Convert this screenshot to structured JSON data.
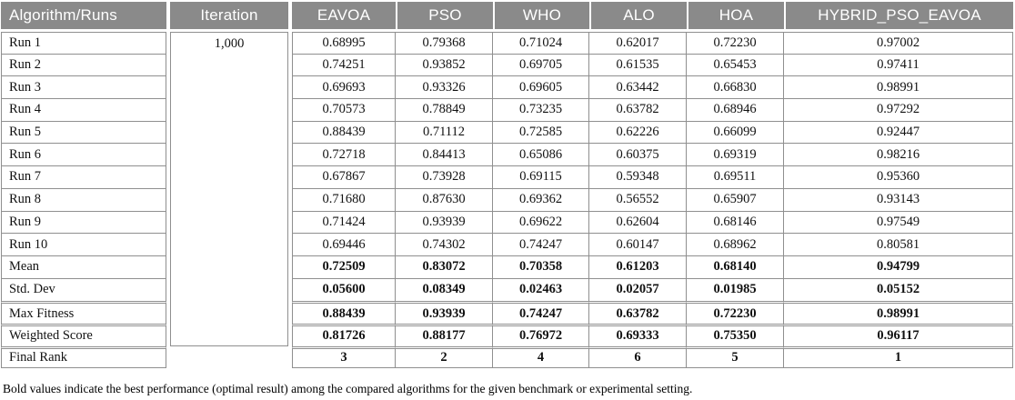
{
  "table": {
    "columns": [
      {
        "id": "algorithm-runs",
        "label": "Algorithm/Runs"
      },
      {
        "id": "iteration",
        "label": "Iteration"
      },
      {
        "id": "eavoa",
        "label": "EAVOA"
      },
      {
        "id": "pso",
        "label": "PSO"
      },
      {
        "id": "who",
        "label": "WHO"
      },
      {
        "id": "alo",
        "label": "ALO"
      },
      {
        "id": "hoa",
        "label": "HOA"
      },
      {
        "id": "hybrid-pso-eavoa",
        "label": "HYBRID_PSO_EAVOA"
      }
    ],
    "iteration_value": "1,000",
    "rows": [
      {
        "label": "Run 1",
        "values": [
          "0.68995",
          "0.79368",
          "0.71024",
          "0.62017",
          "0.72230",
          "0.97002"
        ],
        "bold": false,
        "sep": false
      },
      {
        "label": "Run 2",
        "values": [
          "0.74251",
          "0.93852",
          "0.69705",
          "0.61535",
          "0.65453",
          "0.97411"
        ],
        "bold": false,
        "sep": false
      },
      {
        "label": "Run 3",
        "values": [
          "0.69693",
          "0.93326",
          "0.69605",
          "0.63442",
          "0.66830",
          "0.98991"
        ],
        "bold": false,
        "sep": false
      },
      {
        "label": "Run 4",
        "values": [
          "0.70573",
          "0.78849",
          "0.73235",
          "0.63782",
          "0.68946",
          "0.97292"
        ],
        "bold": false,
        "sep": false
      },
      {
        "label": "Run 5",
        "values": [
          "0.88439",
          "0.71112",
          "0.72585",
          "0.62226",
          "0.66099",
          "0.92447"
        ],
        "bold": false,
        "sep": false
      },
      {
        "label": "Run 6",
        "values": [
          "0.72718",
          "0.84413",
          "0.65086",
          "0.60375",
          "0.69319",
          "0.98216"
        ],
        "bold": false,
        "sep": false
      },
      {
        "label": "Run 7",
        "values": [
          "0.67867",
          "0.73928",
          "0.69115",
          "0.59348",
          "0.69511",
          "0.95360"
        ],
        "bold": false,
        "sep": false
      },
      {
        "label": "Run 8",
        "values": [
          "0.71680",
          "0.87630",
          "0.69362",
          "0.56552",
          "0.65907",
          "0.93143"
        ],
        "bold": false,
        "sep": false
      },
      {
        "label": "Run 9",
        "values": [
          "0.71424",
          "0.93939",
          "0.69622",
          "0.62604",
          "0.68146",
          "0.97549"
        ],
        "bold": false,
        "sep": false
      },
      {
        "label": "Run 10",
        "values": [
          "0.69446",
          "0.74302",
          "0.74247",
          "0.60147",
          "0.68962",
          "0.80581"
        ],
        "bold": false,
        "sep": false
      },
      {
        "label": "Mean",
        "values": [
          "0.72509",
          "0.83072",
          "0.70358",
          "0.61203",
          "0.68140",
          "0.94799"
        ],
        "bold": true,
        "sep": false
      },
      {
        "label": "Std. Dev",
        "values": [
          "0.05600",
          "0.08349",
          "0.02463",
          "0.02057",
          "0.01985",
          "0.05152"
        ],
        "bold": true,
        "sep": false
      },
      {
        "label": "Max Fitness",
        "values": [
          "0.88439",
          "0.93939",
          "0.74247",
          "0.63782",
          "0.72230",
          "0.98991"
        ],
        "bold": true,
        "sep": true
      },
      {
        "label": "Weighted Score",
        "values": [
          "0.81726",
          "0.88177",
          "0.76972",
          "0.69333",
          "0.75350",
          "0.96117"
        ],
        "bold": true,
        "sep": true
      },
      {
        "label": "Final Rank",
        "values": [
          "3",
          "2",
          "4",
          "6",
          "5",
          "1"
        ],
        "bold": true,
        "sep": true
      }
    ]
  },
  "footnote": "Bold values indicate the best performance (optimal result) among the compared algorithms for the given benchmark or experimental setting.",
  "colors": {
    "header_bg": "#8a8a8a",
    "header_text": "#ffffff",
    "border": "#8f8f8f",
    "text": "#111111"
  }
}
